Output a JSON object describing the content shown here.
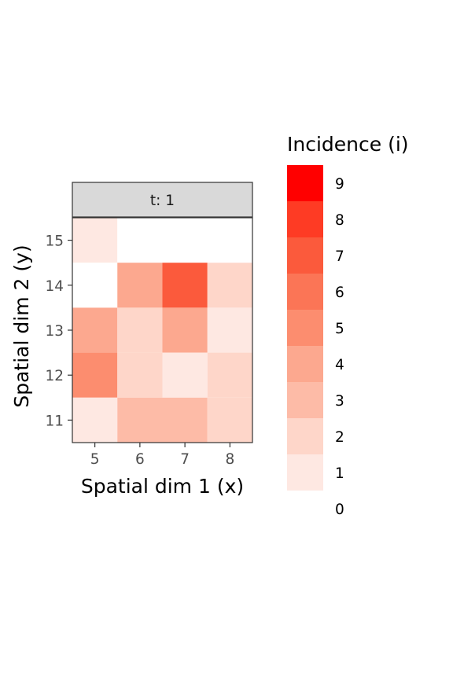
{
  "chart_data": {
    "type": "heatmap",
    "facet_label": "t: 1",
    "xlabel": "Spatial dim 1 (x)",
    "ylabel": "Spatial dim 2 (y)",
    "x_ticks": [
      5,
      6,
      7,
      8
    ],
    "y_ticks": [
      11,
      12,
      13,
      14,
      15
    ],
    "xlim": [
      4.5,
      8.5
    ],
    "ylim": [
      10.5,
      15.5
    ],
    "cells": [
      {
        "x": 5,
        "y": 15,
        "value": 1
      },
      {
        "x": 6,
        "y": 15,
        "value": 0
      },
      {
        "x": 7,
        "y": 15,
        "value": 0
      },
      {
        "x": 8,
        "y": 15,
        "value": 0
      },
      {
        "x": 5,
        "y": 14,
        "value": 0
      },
      {
        "x": 6,
        "y": 14,
        "value": 4
      },
      {
        "x": 7,
        "y": 14,
        "value": 7
      },
      {
        "x": 8,
        "y": 14,
        "value": 2
      },
      {
        "x": 5,
        "y": 13,
        "value": 4
      },
      {
        "x": 6,
        "y": 13,
        "value": 2
      },
      {
        "x": 7,
        "y": 13,
        "value": 4
      },
      {
        "x": 8,
        "y": 13,
        "value": 1
      },
      {
        "x": 5,
        "y": 12,
        "value": 5
      },
      {
        "x": 6,
        "y": 12,
        "value": 2
      },
      {
        "x": 7,
        "y": 12,
        "value": 1
      },
      {
        "x": 8,
        "y": 12,
        "value": 2
      },
      {
        "x": 5,
        "y": 11,
        "value": 1
      },
      {
        "x": 6,
        "y": 11,
        "value": 3
      },
      {
        "x": 7,
        "y": 11,
        "value": 3
      },
      {
        "x": 8,
        "y": 11,
        "value": 2
      }
    ],
    "legend": {
      "title": "Incidence (i)",
      "placement": "right",
      "levels": [
        0,
        1,
        2,
        3,
        4,
        5,
        6,
        7,
        8,
        9
      ],
      "colors": [
        "#ffffff",
        "#fee8e2",
        "#fed6c9",
        "#fdbba7",
        "#fca88f",
        "#fc8d6f",
        "#fb7556",
        "#fb5a3c",
        "#fe3b24",
        "#ff0000"
      ]
    },
    "grid": false
  }
}
